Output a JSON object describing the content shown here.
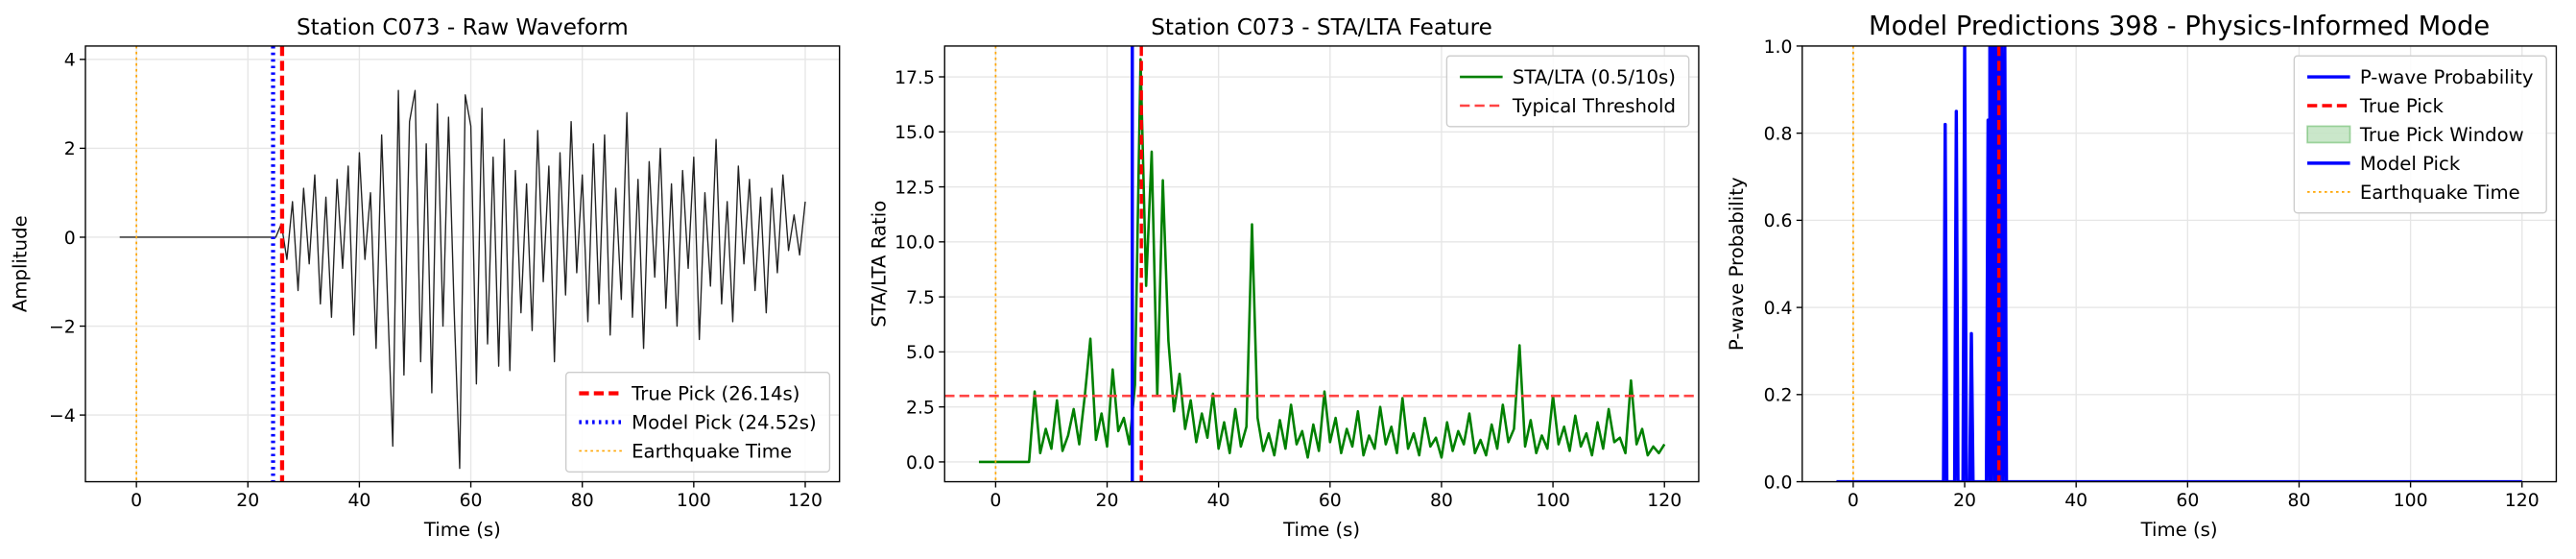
{
  "chart_data": [
    {
      "type": "line",
      "title": "Station C073 - Raw Waveform",
      "xlabel": "Time (s)",
      "ylabel": "Amplitude",
      "x": [
        -3,
        -2,
        -1,
        0,
        1,
        2,
        3,
        4,
        5,
        6,
        7,
        8,
        9,
        10,
        11,
        12,
        13,
        14,
        15,
        16,
        17,
        18,
        19,
        20,
        21,
        22,
        23,
        24,
        25,
        26,
        27,
        28,
        29,
        30,
        31,
        32,
        33,
        34,
        35,
        36,
        37,
        38,
        39,
        40,
        41,
        42,
        43,
        44,
        45,
        46,
        47,
        48,
        49,
        50,
        51,
        52,
        53,
        54,
        55,
        56,
        57,
        58,
        59,
        60,
        61,
        62,
        63,
        64,
        65,
        66,
        67,
        68,
        69,
        70,
        71,
        72,
        73,
        74,
        75,
        76,
        77,
        78,
        79,
        80,
        81,
        82,
        83,
        84,
        85,
        86,
        87,
        88,
        89,
        90,
        91,
        92,
        93,
        94,
        95,
        96,
        97,
        98,
        99,
        100,
        101,
        102,
        103,
        104,
        105,
        106,
        107,
        108,
        109,
        110,
        111,
        112,
        113,
        114,
        115,
        116,
        117,
        118,
        119,
        120
      ],
      "series": [
        {
          "color": "#222222",
          "values": [
            0,
            0,
            0,
            0,
            0,
            0,
            0,
            0,
            0,
            0,
            0,
            0,
            0,
            0,
            0,
            0,
            0,
            0,
            0,
            0,
            0,
            0,
            0,
            0,
            0,
            0,
            0,
            0,
            0,
            0.3,
            -0.5,
            0.8,
            -1.2,
            1.1,
            -0.6,
            1.4,
            -1.5,
            0.9,
            -1.8,
            1.3,
            -0.7,
            1.6,
            -2.2,
            1.9,
            -0.5,
            1.0,
            -2.5,
            2.3,
            -1.2,
            -4.7,
            3.3,
            -3.1,
            2.6,
            3.3,
            -2.8,
            2.1,
            -3.5,
            3.0,
            -2.0,
            2.7,
            -1.6,
            -5.2,
            3.2,
            2.5,
            -3.3,
            2.9,
            -2.4,
            1.8,
            -2.9,
            2.2,
            -3.0,
            1.5,
            -1.7,
            1.2,
            -2.1,
            2.4,
            -1.0,
            1.6,
            -2.8,
            1.9,
            -1.3,
            2.6,
            -0.8,
            1.4,
            -1.9,
            2.1,
            -1.5,
            2.3,
            -2.2,
            1.1,
            -1.4,
            2.8,
            -1.8,
            1.3,
            -2.5,
            1.7,
            -0.9,
            2.0,
            -1.6,
            1.2,
            -2.0,
            1.5,
            -0.7,
            1.8,
            -2.3,
            1.0,
            -1.1,
            2.2,
            -1.5,
            0.8,
            -1.9,
            1.6,
            -0.6,
            1.3,
            -1.2,
            0.9,
            -1.7,
            1.1,
            -0.8,
            1.4,
            -0.3,
            0.5,
            -0.4,
            0.8
          ]
        }
      ],
      "overlays": [
        {
          "kind": "vline",
          "name": "True Pick (26.14s)",
          "x": 26.14,
          "color": "#ff0000",
          "style": "dashed"
        },
        {
          "kind": "vline",
          "name": "Model Pick (24.52s)",
          "x": 24.52,
          "color": "#0000ff",
          "style": "dotted"
        },
        {
          "kind": "vline",
          "name": "Earthquake Time",
          "x": 0,
          "color": "#ffa500",
          "style": "dotted"
        }
      ],
      "xlim": [
        -9.15,
        126.15
      ],
      "ylim": [
        -5.5,
        4.3
      ],
      "xticks": [
        0,
        20,
        40,
        60,
        80,
        100,
        120
      ],
      "yticks": [
        {
          "value": -4,
          "label": "−4"
        },
        {
          "value": -2,
          "label": "−2"
        },
        0,
        2,
        4
      ],
      "grid": true,
      "legend": "lower right"
    },
    {
      "type": "line",
      "title": "Station C073 - STA/LTA Feature",
      "xlabel": "Time (s)",
      "ylabel": "STA/LTA Ratio",
      "x": [
        -3,
        -2,
        -1,
        0,
        1,
        2,
        3,
        4,
        5,
        6,
        7,
        8,
        9,
        10,
        11,
        12,
        13,
        14,
        15,
        16,
        17,
        18,
        19,
        20,
        21,
        22,
        23,
        24,
        25,
        26,
        27,
        28,
        29,
        30,
        31,
        32,
        33,
        34,
        35,
        36,
        37,
        38,
        39,
        40,
        41,
        42,
        43,
        44,
        45,
        46,
        47,
        48,
        49,
        50,
        51,
        52,
        53,
        54,
        55,
        56,
        57,
        58,
        59,
        60,
        61,
        62,
        63,
        64,
        65,
        66,
        67,
        68,
        69,
        70,
        71,
        72,
        73,
        74,
        75,
        76,
        77,
        78,
        79,
        80,
        81,
        82,
        83,
        84,
        85,
        86,
        87,
        88,
        89,
        90,
        91,
        92,
        93,
        94,
        95,
        96,
        97,
        98,
        99,
        100,
        101,
        102,
        103,
        104,
        105,
        106,
        107,
        108,
        109,
        110,
        111,
        112,
        113,
        114,
        115,
        116,
        117,
        118,
        119,
        120
      ],
      "series": [
        {
          "name": "STA/LTA (0.5/10s)",
          "color": "#008000",
          "values": [
            0,
            0,
            0,
            0,
            0,
            0,
            0,
            0,
            0,
            0,
            3.2,
            0.4,
            1.5,
            0.6,
            2.8,
            0.5,
            1.2,
            2.4,
            0.8,
            3.0,
            5.6,
            1.0,
            2.2,
            0.7,
            4.2,
            1.4,
            2.0,
            0.8,
            3.5,
            18.3,
            8.0,
            14.1,
            3.0,
            12.8,
            5.5,
            2.3,
            4.0,
            1.5,
            2.8,
            0.9,
            2.2,
            1.1,
            3.1,
            0.6,
            1.8,
            0.4,
            2.4,
            0.7,
            1.6,
            10.8,
            2.0,
            0.5,
            1.3,
            0.3,
            1.9,
            0.6,
            2.6,
            0.8,
            1.4,
            0.2,
            1.7,
            0.5,
            3.2,
            0.9,
            2.0,
            0.4,
            1.5,
            0.7,
            2.3,
            0.3,
            1.2,
            0.6,
            2.5,
            0.8,
            1.6,
            0.4,
            2.9,
            0.6,
            1.3,
            0.3,
            2.0,
            0.7,
            1.1,
            0.2,
            1.8,
            0.5,
            1.4,
            0.8,
            2.2,
            0.4,
            1.0,
            0.3,
            1.7,
            0.6,
            2.6,
            0.9,
            1.5,
            5.3,
            0.7,
            1.9,
            0.4,
            1.2,
            0.6,
            3.0,
            0.8,
            1.6,
            0.5,
            2.1,
            0.7,
            1.3,
            0.3,
            1.8,
            0.6,
            2.4,
            0.9,
            1.1,
            0.4,
            3.7,
            0.8,
            1.5,
            0.3,
            0.7,
            0.4,
            0.8
          ]
        }
      ],
      "overlays": [
        {
          "kind": "hline",
          "name": "Typical Threshold",
          "y": 3.0,
          "color": "#ff4444",
          "style": "dashed"
        },
        {
          "kind": "vline",
          "x": 24.52,
          "color": "#0000ff",
          "style": "solid"
        },
        {
          "kind": "vline",
          "x": 26.14,
          "color": "#ff0000",
          "style": "dashed"
        },
        {
          "kind": "vline",
          "x": 0,
          "color": "#ffa500",
          "style": "dotted"
        }
      ],
      "xlim": [
        -9.15,
        126.15
      ],
      "ylim": [
        -0.9,
        18.9
      ],
      "xticks": [
        0,
        20,
        40,
        60,
        80,
        100,
        120
      ],
      "yticks": [
        {
          "value": 0,
          "label": "0.0"
        },
        {
          "value": 2.5,
          "label": "2.5"
        },
        {
          "value": 5,
          "label": "5.0"
        },
        {
          "value": 7.5,
          "label": "7.5"
        },
        {
          "value": 10,
          "label": "10.0"
        },
        {
          "value": 12.5,
          "label": "12.5"
        },
        {
          "value": 15,
          "label": "15.0"
        },
        {
          "value": 17.5,
          "label": "17.5"
        }
      ],
      "grid": true,
      "legend": "upper right"
    },
    {
      "type": "line",
      "title": "Model Predictions 398 - Physics-Informed Mode",
      "xlabel": "Time (s)",
      "ylabel": "P-wave Probability",
      "x": [
        -3,
        16.2,
        16.5,
        16.8,
        18.2,
        18.5,
        18.8,
        19.7,
        20,
        20.3,
        20.9,
        21.2,
        21.5,
        23.9,
        24.2,
        24.5,
        24.7,
        25,
        25.3,
        25.5,
        25.8,
        26.1,
        26.3,
        26.6,
        26.9,
        27.2,
        27.5,
        120
      ],
      "series": [
        {
          "name": "P-wave Probability",
          "color": "#0000ff",
          "values": [
            0,
            0,
            0.82,
            0,
            0,
            0.85,
            0,
            0,
            1.0,
            0,
            0,
            0.34,
            0,
            0,
            0.83,
            0,
            0,
            1.0,
            0,
            1.0,
            0,
            1.0,
            0,
            1.0,
            0,
            1.0,
            0,
            0
          ]
        }
      ],
      "overlays": [
        {
          "kind": "vline",
          "name": "True Pick",
          "x": 26.14,
          "color": "#ff0000",
          "style": "dashed"
        },
        {
          "kind": "span",
          "name": "True Pick Window",
          "x0": 25.14,
          "x1": 27.14,
          "color": "#2ca02c"
        },
        {
          "kind": "vline",
          "name": "Model Pick",
          "x": 24.52,
          "color": "#0000ff",
          "style": "solid"
        },
        {
          "kind": "vline",
          "name": "Earthquake Time",
          "x": 0,
          "color": "#ffa500",
          "style": "dotted"
        }
      ],
      "xlim": [
        -9.15,
        126.15
      ],
      "ylim": [
        0,
        1
      ],
      "xticks": [
        0,
        20,
        40,
        60,
        80,
        100,
        120
      ],
      "yticks": [
        {
          "value": 0,
          "label": "0.0"
        },
        {
          "value": 0.2,
          "label": "0.2"
        },
        {
          "value": 0.4,
          "label": "0.4"
        },
        {
          "value": 0.6,
          "label": "0.6"
        },
        {
          "value": 0.8,
          "label": "0.8"
        },
        {
          "value": 1,
          "label": "1.0"
        }
      ],
      "grid": true,
      "legend": "upper right"
    }
  ]
}
